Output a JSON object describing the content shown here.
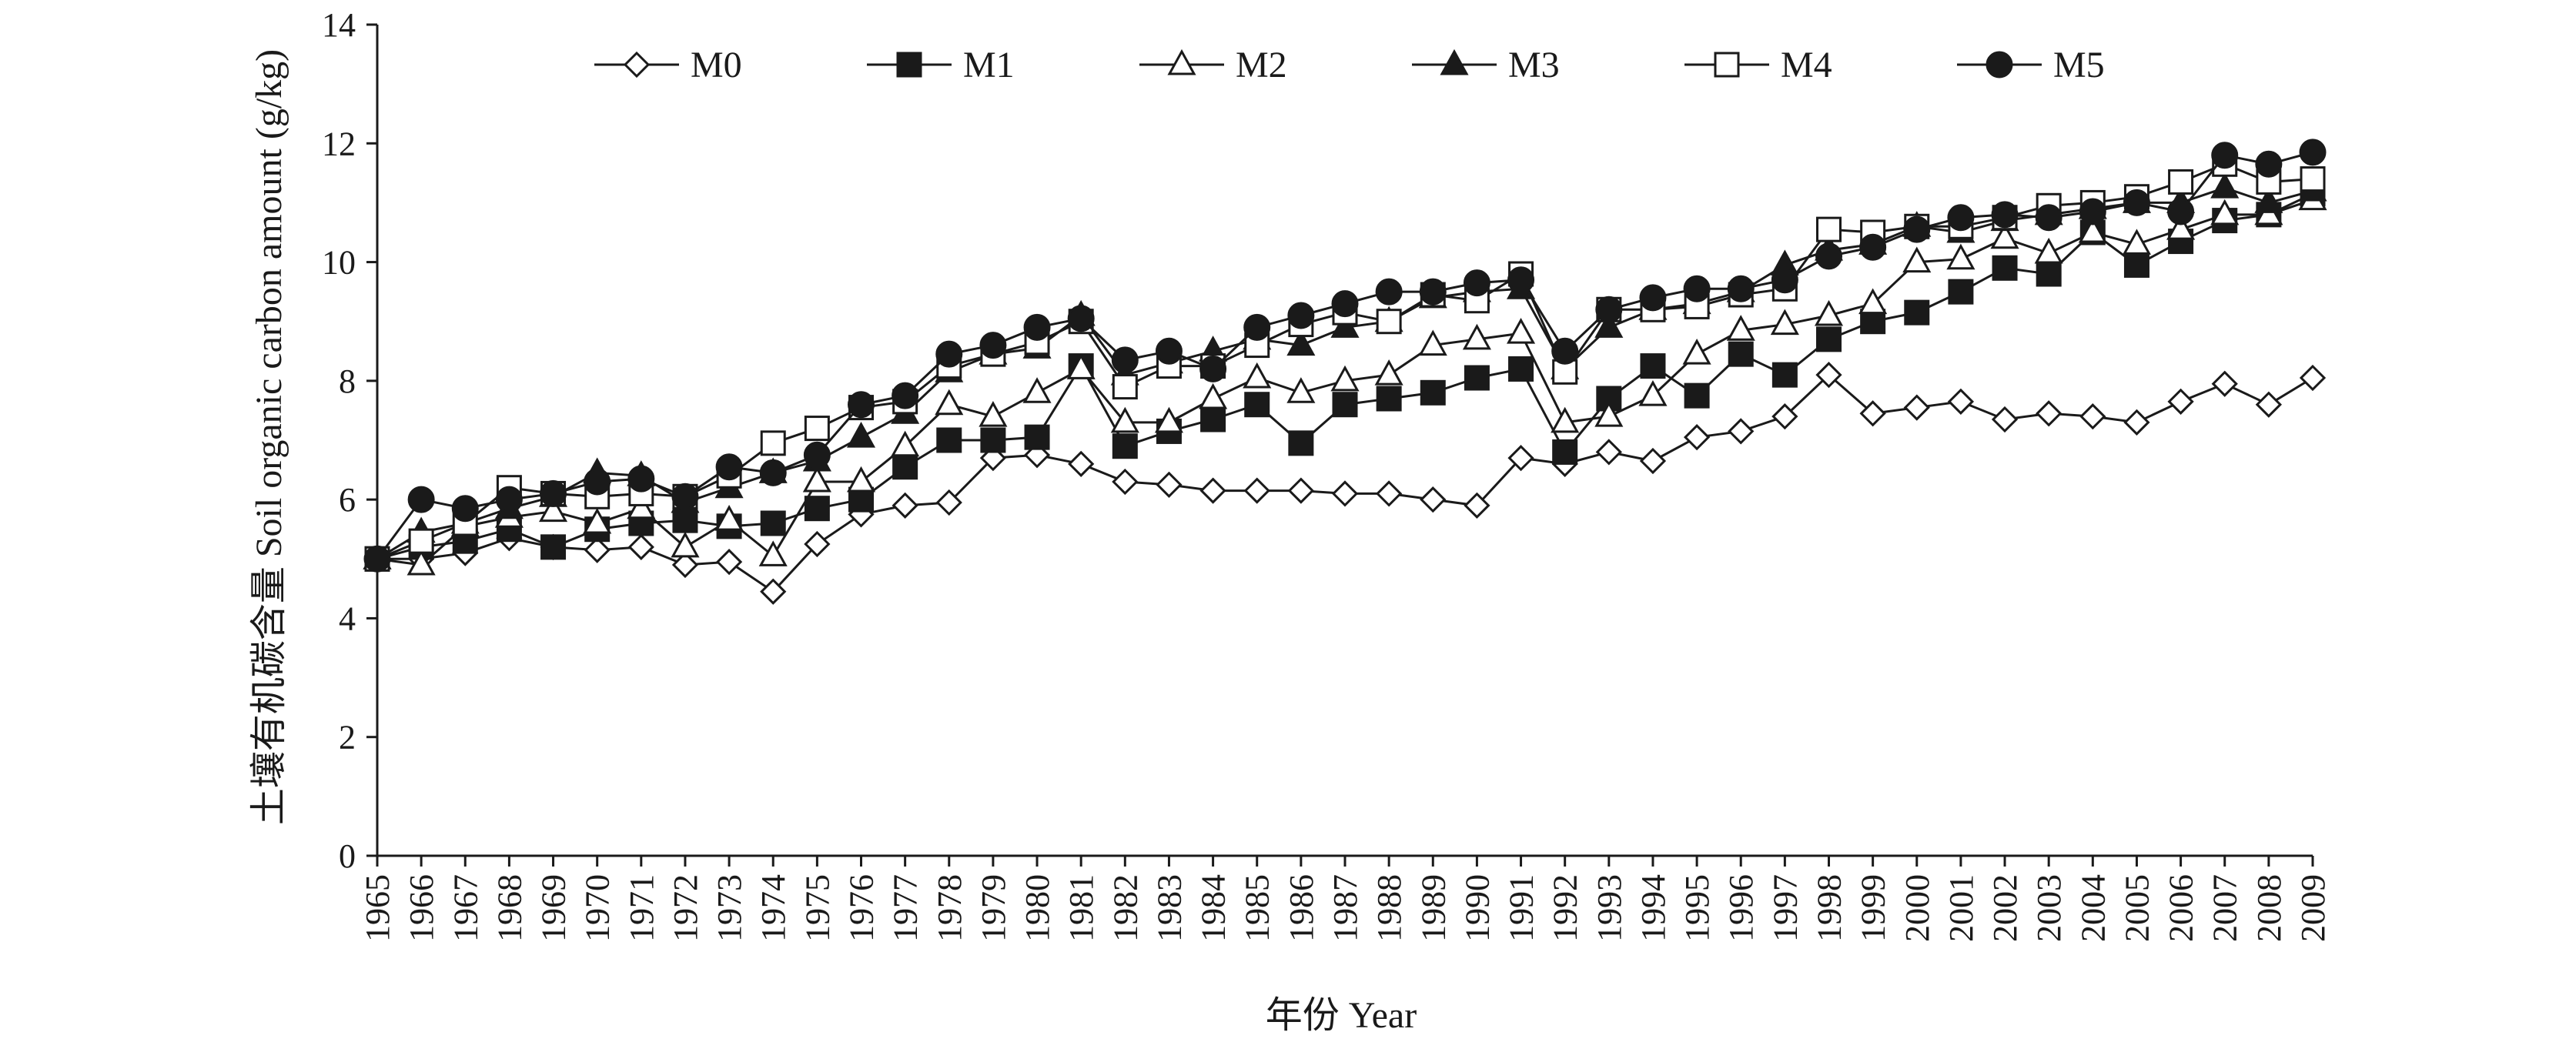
{
  "chart_data": {
    "type": "line",
    "xlabel": "年份 Year",
    "ylabel": "土壤有机碳含量 Soil organic carbon amount (g/kg)",
    "ylim": [
      0,
      14
    ],
    "yticks": [
      0,
      2,
      4,
      6,
      8,
      10,
      12,
      14
    ],
    "x": [
      1965,
      1966,
      1967,
      1968,
      1969,
      1970,
      1971,
      1972,
      1973,
      1974,
      1975,
      1976,
      1977,
      1978,
      1979,
      1980,
      1981,
      1982,
      1983,
      1984,
      1985,
      1986,
      1987,
      1988,
      1989,
      1990,
      1991,
      1992,
      1993,
      1994,
      1995,
      1996,
      1997,
      1998,
      1999,
      2000,
      2001,
      2002,
      2003,
      2004,
      2005,
      2006,
      2007,
      2008,
      2009
    ],
    "grid": false,
    "legend_position": "top",
    "series": [
      {
        "name": "M0",
        "marker": "diamond-open",
        "values": [
          5.0,
          5.0,
          5.1,
          5.35,
          5.2,
          5.15,
          5.2,
          4.9,
          4.95,
          4.45,
          5.25,
          5.75,
          5.9,
          5.95,
          6.7,
          6.75,
          6.6,
          6.3,
          6.25,
          6.15,
          6.15,
          6.15,
          6.1,
          6.1,
          6.0,
          5.9,
          6.7,
          6.6,
          6.8,
          6.65,
          7.05,
          7.15,
          7.4,
          8.1,
          7.45,
          7.55,
          7.65,
          7.35,
          7.45,
          7.4,
          7.3,
          7.65,
          7.95,
          7.6,
          8.05
        ]
      },
      {
        "name": "M1",
        "marker": "square-filled",
        "values": [
          5.0,
          5.2,
          5.3,
          5.5,
          5.2,
          5.5,
          5.6,
          5.65,
          5.55,
          5.6,
          5.85,
          6.0,
          6.55,
          7.0,
          7.0,
          7.05,
          8.25,
          6.9,
          7.15,
          7.35,
          7.6,
          6.95,
          7.6,
          7.7,
          7.8,
          8.05,
          8.2,
          6.8,
          7.7,
          8.25,
          7.75,
          8.45,
          8.1,
          8.7,
          9.0,
          9.15,
          9.5,
          9.9,
          9.8,
          10.5,
          9.95,
          10.35,
          10.7,
          10.8,
          11.15
        ]
      },
      {
        "name": "M2",
        "marker": "triangle-open",
        "values": [
          5.0,
          4.9,
          5.55,
          5.7,
          5.8,
          5.6,
          5.85,
          5.2,
          5.65,
          5.05,
          6.3,
          6.3,
          6.9,
          7.6,
          7.4,
          7.8,
          8.2,
          7.3,
          7.3,
          7.7,
          8.05,
          7.8,
          8.0,
          8.1,
          8.6,
          8.7,
          8.8,
          7.3,
          7.4,
          7.75,
          8.45,
          8.85,
          8.95,
          9.1,
          9.3,
          10.0,
          10.05,
          10.4,
          10.15,
          10.5,
          10.3,
          10.55,
          10.8,
          10.8,
          11.05
        ]
      },
      {
        "name": "M3",
        "marker": "triangle-filled",
        "values": [
          5.0,
          5.45,
          5.6,
          5.85,
          6.05,
          6.45,
          6.4,
          5.95,
          6.2,
          6.45,
          6.65,
          7.05,
          7.45,
          8.15,
          8.45,
          8.55,
          9.1,
          8.1,
          8.3,
          8.5,
          8.7,
          8.6,
          8.9,
          9.0,
          9.4,
          9.5,
          9.55,
          8.2,
          8.9,
          9.2,
          9.3,
          9.5,
          9.95,
          10.2,
          10.3,
          10.6,
          10.5,
          10.7,
          10.8,
          10.9,
          11.0,
          11.0,
          11.25,
          11.0,
          11.2
        ]
      },
      {
        "name": "M4",
        "marker": "square-open",
        "values": [
          5.0,
          5.3,
          5.6,
          6.2,
          6.1,
          6.05,
          6.1,
          6.05,
          6.4,
          6.95,
          7.2,
          7.55,
          7.65,
          8.25,
          8.45,
          8.65,
          9.0,
          7.9,
          8.25,
          8.25,
          8.6,
          8.95,
          9.15,
          9.0,
          9.45,
          9.35,
          9.8,
          8.15,
          9.2,
          9.2,
          9.25,
          9.45,
          9.55,
          10.55,
          10.5,
          10.6,
          10.6,
          10.75,
          10.95,
          11.0,
          11.1,
          11.35,
          11.65,
          11.35,
          11.4
        ]
      },
      {
        "name": "M5",
        "marker": "circle-filled",
        "values": [
          5.0,
          6.0,
          5.85,
          6.0,
          6.1,
          6.3,
          6.35,
          6.05,
          6.55,
          6.45,
          6.75,
          7.6,
          7.75,
          8.45,
          8.6,
          8.9,
          9.05,
          8.35,
          8.5,
          8.2,
          8.9,
          9.1,
          9.3,
          9.5,
          9.5,
          9.65,
          9.7,
          8.5,
          9.2,
          9.4,
          9.55,
          9.55,
          9.7,
          10.1,
          10.25,
          10.55,
          10.75,
          10.8,
          10.75,
          10.85,
          11.0,
          10.85,
          11.8,
          11.65,
          11.85
        ]
      }
    ]
  }
}
